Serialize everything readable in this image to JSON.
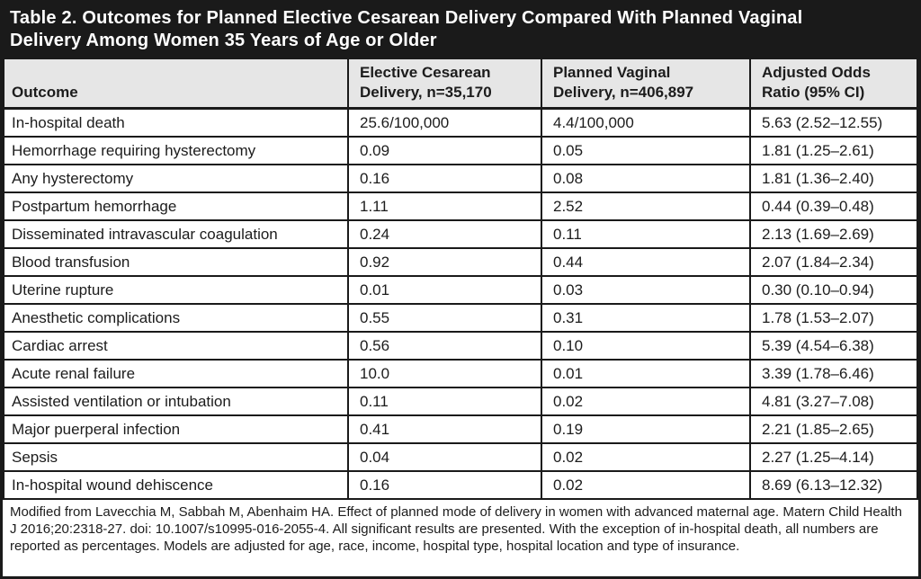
{
  "table": {
    "title": "Table 2. Outcomes for Planned Elective Cesarean Delivery Compared With Planned Vaginal Delivery Among Women 35 Years of Age or Older",
    "columns": [
      "Outcome",
      "Elective Cesarean\nDelivery, n=35,170",
      "Planned Vaginal\nDelivery, n=406,897",
      "Adjusted Odds\nRatio (95% CI)"
    ],
    "rows": [
      [
        "In-hospital death",
        "25.6/100,000",
        "4.4/100,000",
        "5.63 (2.52–12.55)"
      ],
      [
        "Hemorrhage requiring hysterectomy",
        "0.09",
        "0.05",
        "1.81 (1.25–2.61)"
      ],
      [
        "Any hysterectomy",
        "0.16",
        "0.08",
        "1.81 (1.36–2.40)"
      ],
      [
        "Postpartum hemorrhage",
        "1.11",
        "2.52",
        "0.44 (0.39–0.48)"
      ],
      [
        "Disseminated intravascular coagulation",
        "0.24",
        "0.11",
        "2.13 (1.69–2.69)"
      ],
      [
        "Blood transfusion",
        "0.92",
        "0.44",
        "2.07 (1.84–2.34)"
      ],
      [
        "Uterine rupture",
        "0.01",
        "0.03",
        "0.30 (0.10–0.94)"
      ],
      [
        "Anesthetic complications",
        "0.55",
        "0.31",
        "1.78 (1.53–2.07)"
      ],
      [
        "Cardiac arrest",
        "0.56",
        "0.10",
        "5.39 (4.54–6.38)"
      ],
      [
        "Acute renal failure",
        "10.0",
        "0.01",
        "3.39 (1.78–6.46)"
      ],
      [
        "Assisted ventilation or intubation",
        "0.11",
        "0.02",
        "4.81 (3.27–7.08)"
      ],
      [
        "Major puerperal infection",
        "0.41",
        "0.19",
        "2.21 (1.85–2.65)"
      ],
      [
        "Sepsis",
        "0.04",
        "0.02",
        "2.27 (1.25–4.14)"
      ],
      [
        "In-hospital wound dehiscence",
        "0.16",
        "0.02",
        "8.69 (6.13–12.32)"
      ]
    ],
    "footnote": "Modified from Lavecchia M, Sabbah M, Abenhaim HA. Effect of planned mode of delivery in women with advanced maternal age. Matern Child Health J 2016;20:2318-27. doi: 10.1007/s10995-016-2055-4. All significant results are presented. With the exception of in-hospital death, all numbers are reported as percentages. Models are adjusted for age, race, income, hospital type, hospital location and type of insurance."
  },
  "colors": {
    "title_bar_bg": "#1a1a1a",
    "title_text": "#ffffff",
    "header_bg": "#e6e6e6",
    "border": "#1a1a1a",
    "body_text": "#1c1c1c"
  }
}
